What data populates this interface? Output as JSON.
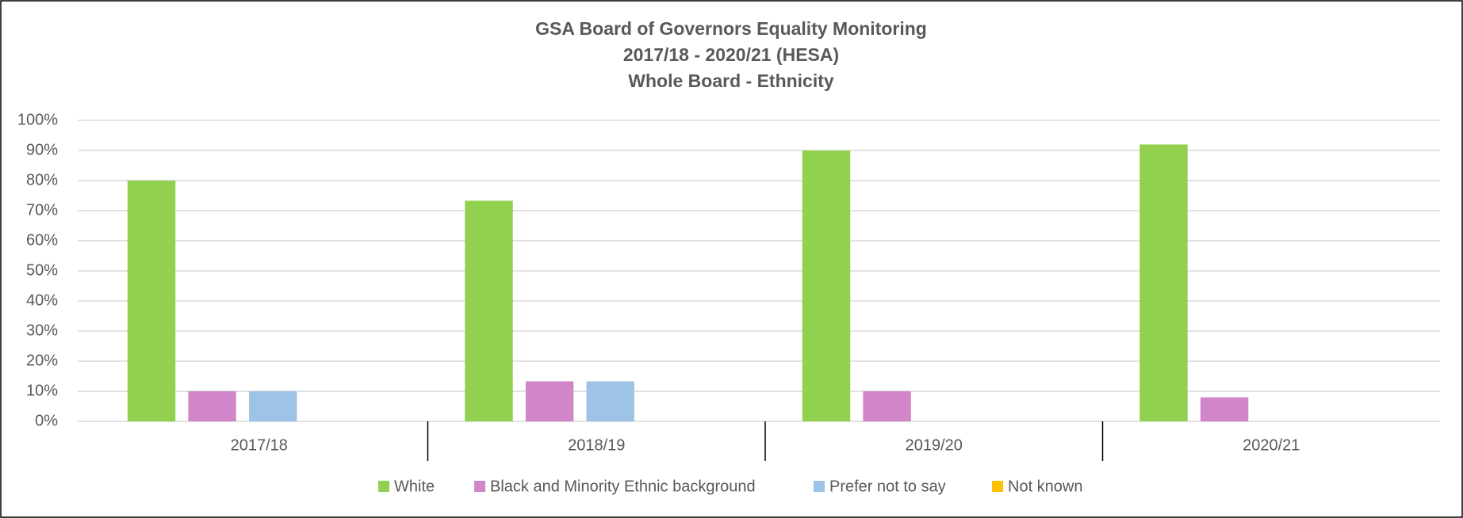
{
  "chart_data": {
    "type": "bar",
    "title": [
      "GSA Board of Governors Equality Monitoring",
      "2017/18 - 2020/21 (HESA)",
      "Whole Board - Ethnicity"
    ],
    "categories": [
      "2017/18",
      "2018/19",
      "2019/20",
      "2020/21"
    ],
    "series": [
      {
        "name": "White",
        "color": "#92d050",
        "values": [
          80,
          73.3,
          90,
          92
        ]
      },
      {
        "name": "Black and Minority Ethnic background",
        "color": "#d086c8",
        "values": [
          10,
          13.3,
          10,
          8
        ]
      },
      {
        "name": "Prefer not to say",
        "color": "#9dc3e6",
        "values": [
          10,
          13.3,
          0,
          0
        ]
      },
      {
        "name": "Not known",
        "color": "#ffc000",
        "values": [
          0,
          0,
          0,
          0
        ]
      }
    ],
    "ylim": [
      0,
      100
    ],
    "yticks": [
      {
        "value": 0,
        "label": "0%"
      },
      {
        "value": 10,
        "label": "10%"
      },
      {
        "value": 20,
        "label": "20%"
      },
      {
        "value": 30,
        "label": "30%"
      },
      {
        "value": 40,
        "label": "40%"
      },
      {
        "value": 50,
        "label": "50%"
      },
      {
        "value": 60,
        "label": "60%"
      },
      {
        "value": 70,
        "label": "70%"
      },
      {
        "value": 80,
        "label": "80%"
      },
      {
        "value": 90,
        "label": "90%"
      },
      {
        "value": 100,
        "label": "100%"
      }
    ],
    "grid": true,
    "legend": "bottom"
  }
}
